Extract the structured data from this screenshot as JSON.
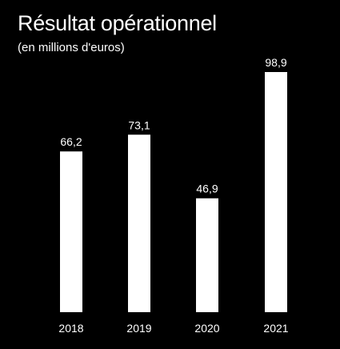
{
  "chart_data": {
    "type": "bar",
    "title": "Résultat opérationnel",
    "subtitle": "(en millions d'euros)",
    "categories": [
      "2018",
      "2019",
      "2020",
      "2021"
    ],
    "values": [
      66.2,
      73.1,
      46.9,
      98.9
    ],
    "value_labels": [
      "66,2",
      "73,1",
      "46,9",
      "98,9"
    ],
    "ylim": [
      0,
      100
    ],
    "grid": false,
    "legend": "none",
    "colors": {
      "background": "#000000",
      "bar": "#ffffff",
      "text": "#ffffff"
    }
  }
}
